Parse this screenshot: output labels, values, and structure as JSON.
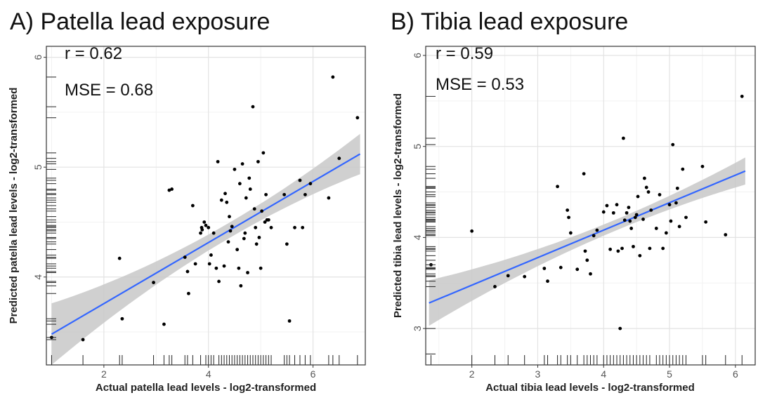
{
  "chart_data": [
    {
      "type": "scatter",
      "title": "A) Patella lead exposure",
      "xlabel": "Actual patella lead levels - log2-transformed",
      "ylabel": "Predicted patella lead levels - log2-transformed",
      "annotations": [
        "r = 0.62",
        "MSE = 0.68"
      ],
      "xlim": [
        0.9,
        7.0
      ],
      "ylim": [
        3.2,
        6.1
      ],
      "xticks": [
        2,
        4,
        6
      ],
      "yticks": [
        4,
        5,
        6
      ],
      "grid": true,
      "rug": true,
      "colors": {
        "line": "#3366ff",
        "band": "#c8c8c8",
        "points": "#000000"
      },
      "fit": {
        "x": [
          1.0,
          6.9
        ],
        "y": [
          3.48,
          5.12
        ],
        "band_halfwidth_ends": 0.28,
        "band_halfwidth_center": 0.07,
        "x_center": 4.4
      },
      "points": [
        [
          1.0,
          3.45
        ],
        [
          1.6,
          3.43
        ],
        [
          2.3,
          4.17
        ],
        [
          2.35,
          3.62
        ],
        [
          2.95,
          3.95
        ],
        [
          3.15,
          3.57
        ],
        [
          3.25,
          4.79
        ],
        [
          3.3,
          4.8
        ],
        [
          3.55,
          4.18
        ],
        [
          3.6,
          4.05
        ],
        [
          3.62,
          3.85
        ],
        [
          3.7,
          4.65
        ],
        [
          3.75,
          4.12
        ],
        [
          3.85,
          4.4
        ],
        [
          3.87,
          4.45
        ],
        [
          3.88,
          4.43
        ],
        [
          3.92,
          4.5
        ],
        [
          3.95,
          4.47
        ],
        [
          4.0,
          4.45
        ],
        [
          4.02,
          4.12
        ],
        [
          4.05,
          4.2
        ],
        [
          4.1,
          4.4
        ],
        [
          4.15,
          4.08
        ],
        [
          4.18,
          5.05
        ],
        [
          4.2,
          3.96
        ],
        [
          4.25,
          4.7
        ],
        [
          4.3,
          4.1
        ],
        [
          4.32,
          4.76
        ],
        [
          4.35,
          4.68
        ],
        [
          4.38,
          4.32
        ],
        [
          4.4,
          4.55
        ],
        [
          4.42,
          4.42
        ],
        [
          4.45,
          4.46
        ],
        [
          4.5,
          4.98
        ],
        [
          4.55,
          4.25
        ],
        [
          4.58,
          4.08
        ],
        [
          4.6,
          4.85
        ],
        [
          4.62,
          3.92
        ],
        [
          4.65,
          5.03
        ],
        [
          4.68,
          4.35
        ],
        [
          4.7,
          4.4
        ],
        [
          4.72,
          4.72
        ],
        [
          4.75,
          4.04
        ],
        [
          4.78,
          4.9
        ],
        [
          4.8,
          4.8
        ],
        [
          4.85,
          5.55
        ],
        [
          4.88,
          4.62
        ],
        [
          4.9,
          4.45
        ],
        [
          4.92,
          4.3
        ],
        [
          4.95,
          5.05
        ],
        [
          4.97,
          4.36
        ],
        [
          5.0,
          4.08
        ],
        [
          5.02,
          4.6
        ],
        [
          5.05,
          5.13
        ],
        [
          5.08,
          4.5
        ],
        [
          5.1,
          4.75
        ],
        [
          5.12,
          4.52
        ],
        [
          5.15,
          4.52
        ],
        [
          5.2,
          4.45
        ],
        [
          5.45,
          4.75
        ],
        [
          5.5,
          4.3
        ],
        [
          5.55,
          3.6
        ],
        [
          5.65,
          4.45
        ],
        [
          5.75,
          4.88
        ],
        [
          5.8,
          4.45
        ],
        [
          5.85,
          4.75
        ],
        [
          5.95,
          4.85
        ],
        [
          6.3,
          4.72
        ],
        [
          6.38,
          5.82
        ],
        [
          6.5,
          5.08
        ],
        [
          6.85,
          5.45
        ]
      ],
      "rug_x": [
        1.0,
        1.6,
        2.3,
        2.35,
        2.95,
        3.15,
        3.25,
        3.3,
        3.55,
        3.6,
        3.7,
        3.85,
        3.95,
        4.0,
        4.05,
        4.1,
        4.2,
        4.25,
        4.3,
        4.35,
        4.4,
        4.45,
        4.5,
        4.55,
        4.6,
        4.65,
        4.7,
        4.75,
        4.8,
        4.85,
        4.9,
        4.95,
        5.0,
        5.05,
        5.1,
        5.15,
        5.2,
        5.45,
        5.5,
        5.55,
        5.65,
        5.75,
        5.85,
        5.95,
        6.3,
        6.38,
        6.5,
        6.85
      ],
      "rug_y": [
        3.43,
        3.45,
        3.57,
        3.6,
        3.62,
        3.85,
        3.92,
        3.95,
        3.96,
        4.04,
        4.05,
        4.08,
        4.1,
        4.12,
        4.17,
        4.18,
        4.2,
        4.25,
        4.3,
        4.32,
        4.35,
        4.36,
        4.4,
        4.42,
        4.43,
        4.45,
        4.46,
        4.47,
        4.5,
        4.52,
        4.55,
        4.6,
        4.62,
        4.65,
        4.68,
        4.7,
        4.72,
        4.75,
        4.76,
        4.79,
        4.8,
        4.85,
        4.88,
        4.9,
        4.98,
        5.03,
        5.05,
        5.08,
        5.13,
        5.45,
        5.55,
        5.82
      ]
    },
    {
      "type": "scatter",
      "title": "B) Tibia lead exposure",
      "xlabel": "Actual tibia lead levels - log2-transformed",
      "ylabel": "Predicted tibia lead levels - log2-transformed",
      "annotations": [
        "r = 0.59",
        "MSE = 0.53"
      ],
      "xlim": [
        1.3,
        6.3
      ],
      "ylim": [
        2.6,
        6.1
      ],
      "xticks": [
        2,
        3,
        4,
        5,
        6
      ],
      "yticks": [
        3,
        4,
        5,
        6
      ],
      "grid": true,
      "rug": true,
      "colors": {
        "line": "#3366ff",
        "band": "#c8c8c8",
        "points": "#000000"
      },
      "fit": {
        "x": [
          1.35,
          6.15
        ],
        "y": [
          3.28,
          4.73
        ],
        "band_halfwidth_ends": 0.25,
        "band_halfwidth_center": 0.06,
        "x_center": 4.2
      },
      "points": [
        [
          1.38,
          3.7
        ],
        [
          2.0,
          4.07
        ],
        [
          2.35,
          3.46
        ],
        [
          2.55,
          3.58
        ],
        [
          2.8,
          3.57
        ],
        [
          3.1,
          3.66
        ],
        [
          3.15,
          3.52
        ],
        [
          3.3,
          4.56
        ],
        [
          3.35,
          3.67
        ],
        [
          3.45,
          4.3
        ],
        [
          3.47,
          4.22
        ],
        [
          3.5,
          4.05
        ],
        [
          3.6,
          3.65
        ],
        [
          3.7,
          4.7
        ],
        [
          3.72,
          3.85
        ],
        [
          3.75,
          3.75
        ],
        [
          3.8,
          3.6
        ],
        [
          3.85,
          4.02
        ],
        [
          3.9,
          4.08
        ],
        [
          4.0,
          4.28
        ],
        [
          4.05,
          4.35
        ],
        [
          4.1,
          3.87
        ],
        [
          4.15,
          4.27
        ],
        [
          4.2,
          4.36
        ],
        [
          4.22,
          3.85
        ],
        [
          4.25,
          3.0
        ],
        [
          4.28,
          3.88
        ],
        [
          4.3,
          5.09
        ],
        [
          4.32,
          4.19
        ],
        [
          4.35,
          4.27
        ],
        [
          4.38,
          4.33
        ],
        [
          4.4,
          4.18
        ],
        [
          4.42,
          4.1
        ],
        [
          4.45,
          3.9
        ],
        [
          4.48,
          4.22
        ],
        [
          4.5,
          4.25
        ],
        [
          4.52,
          4.45
        ],
        [
          4.55,
          3.8
        ],
        [
          4.6,
          4.2
        ],
        [
          4.62,
          4.65
        ],
        [
          4.65,
          4.55
        ],
        [
          4.68,
          4.5
        ],
        [
          4.7,
          3.88
        ],
        [
          4.72,
          4.3
        ],
        [
          4.8,
          4.1
        ],
        [
          4.85,
          4.47
        ],
        [
          4.9,
          3.88
        ],
        [
          4.95,
          4.05
        ],
        [
          5.0,
          4.36
        ],
        [
          5.02,
          4.18
        ],
        [
          5.05,
          5.02
        ],
        [
          5.1,
          4.38
        ],
        [
          5.12,
          4.54
        ],
        [
          5.15,
          4.12
        ],
        [
          5.2,
          4.75
        ],
        [
          5.25,
          4.22
        ],
        [
          5.5,
          4.78
        ],
        [
          5.55,
          4.17
        ],
        [
          5.85,
          4.03
        ],
        [
          6.1,
          5.55
        ]
      ],
      "rug_x": [
        1.38,
        2.0,
        2.35,
        2.55,
        2.8,
        3.1,
        3.15,
        3.3,
        3.35,
        3.45,
        3.5,
        3.6,
        3.7,
        3.75,
        3.8,
        3.85,
        3.9,
        4.0,
        4.05,
        4.1,
        4.15,
        4.2,
        4.25,
        4.3,
        4.35,
        4.4,
        4.45,
        4.5,
        4.55,
        4.6,
        4.65,
        4.7,
        4.8,
        4.85,
        4.9,
        4.95,
        5.0,
        5.05,
        5.1,
        5.15,
        5.2,
        5.25,
        5.5,
        5.55,
        5.85,
        6.1
      ],
      "rug_y": [
        2.72,
        3.0,
        3.46,
        3.52,
        3.57,
        3.58,
        3.6,
        3.65,
        3.66,
        3.67,
        3.7,
        3.75,
        3.8,
        3.85,
        3.87,
        3.88,
        3.9,
        4.02,
        4.03,
        4.05,
        4.07,
        4.08,
        4.1,
        4.12,
        4.17,
        4.18,
        4.19,
        4.2,
        4.22,
        4.25,
        4.27,
        4.28,
        4.3,
        4.33,
        4.35,
        4.36,
        4.38,
        4.45,
        4.47,
        4.5,
        4.54,
        4.55,
        4.56,
        4.65,
        4.7,
        4.75,
        4.78,
        5.02,
        5.09,
        5.55
      ]
    }
  ]
}
